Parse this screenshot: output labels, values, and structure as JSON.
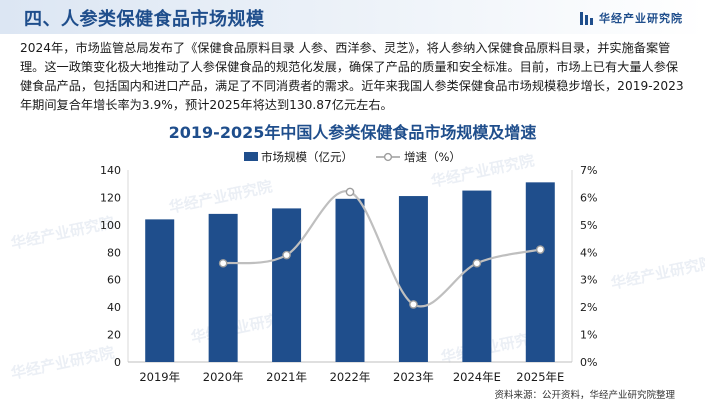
{
  "header": {
    "title": "四、人参类保健食品市场规模",
    "brand": "华经产业研究院"
  },
  "intro": "2024年，市场监管总局发布了《保健食品原料目录 人参、西洋参、灵芝》，将人参纳入保健食品原料目录，并实施备案管理。这一政策变化极大地推动了人参保健食品的规范化发展，确保了产品的质量和安全标准。目前，市场上已有大量人参保健食品产品，包括国内和进口产品，满足了不同消费者的需求。近年来我国人参类保健食品市场规模稳步增长，2019-2023年期间复合年增长率为3.9%，预计2025年将达到130.87亿元左右。",
  "watermark": "华经产业研究院",
  "footer": "资料来源：公开资料，华经产业研究院整理",
  "colors": {
    "bar": "#1f4e8c",
    "line": "#bfbfbf",
    "title": "#1f4e8c"
  },
  "chart_data": {
    "type": "bar",
    "title": "2019-2025年中国人参类保健食品市场规模及增速",
    "categories": [
      "2019年",
      "2020年",
      "2021年",
      "2022年",
      "2023年",
      "2024年E",
      "2025年E"
    ],
    "series": [
      {
        "name": "市场规模（亿元）",
        "type": "bar",
        "axis": "left",
        "values": [
          104,
          108,
          112,
          119,
          121,
          125,
          131
        ]
      },
      {
        "name": "增速（%）",
        "type": "line",
        "axis": "right",
        "values": [
          null,
          3.6,
          3.9,
          6.2,
          2.1,
          3.6,
          4.1
        ]
      }
    ],
    "y_left": {
      "min": 0,
      "max": 140,
      "ticks": [
        "0",
        "20",
        "40",
        "60",
        "80",
        "100",
        "120",
        "140"
      ]
    },
    "y_right": {
      "min": 0,
      "max": 7,
      "ticks": [
        "0%",
        "1%",
        "2%",
        "3%",
        "4%",
        "5%",
        "6%",
        "7%"
      ]
    },
    "legend": "top-center",
    "grid": false
  }
}
